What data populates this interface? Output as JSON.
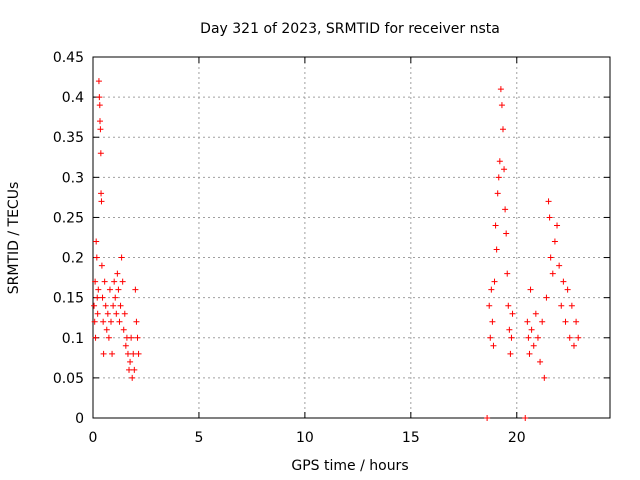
{
  "chart_data": {
    "type": "scatter",
    "title": "Day 321 of 2023, SRMTID for receiver nsta",
    "xlabel": "GPS time / hours",
    "ylabel": "SRMTID / TECUs",
    "xlim": [
      0,
      24.4
    ],
    "ylim": [
      0,
      0.45
    ],
    "x_ticks": [
      "0",
      "5",
      "10",
      "15",
      "20"
    ],
    "x_tick_values": [
      0,
      5,
      10,
      15,
      20
    ],
    "y_ticks": [
      "0",
      "0.05",
      "0.1",
      "0.15",
      "0.2",
      "0.25",
      "0.3",
      "0.35",
      "0.4",
      "0.45"
    ],
    "y_tick_values": [
      0,
      0.05,
      0.1,
      0.15,
      0.2,
      0.25,
      0.3,
      0.35,
      0.4,
      0.45
    ],
    "grid": true,
    "marker": "+",
    "color": "#ff0000",
    "series": [
      {
        "values_xy": [
          [
            0.05,
            0.14
          ],
          [
            0.08,
            0.12
          ],
          [
            0.1,
            0.17
          ],
          [
            0.12,
            0.1
          ],
          [
            0.15,
            0.22
          ],
          [
            0.18,
            0.2
          ],
          [
            0.2,
            0.15
          ],
          [
            0.22,
            0.13
          ],
          [
            0.25,
            0.16
          ],
          [
            0.28,
            0.42
          ],
          [
            0.3,
            0.4
          ],
          [
            0.32,
            0.39
          ],
          [
            0.33,
            0.37
          ],
          [
            0.35,
            0.36
          ],
          [
            0.37,
            0.33
          ],
          [
            0.38,
            0.28
          ],
          [
            0.4,
            0.27
          ],
          [
            0.42,
            0.19
          ],
          [
            0.45,
            0.15
          ],
          [
            0.48,
            0.12
          ],
          [
            0.5,
            0.08
          ],
          [
            0.55,
            0.17
          ],
          [
            0.6,
            0.14
          ],
          [
            0.65,
            0.11
          ],
          [
            0.7,
            0.13
          ],
          [
            0.75,
            0.1
          ],
          [
            0.8,
            0.16
          ],
          [
            0.85,
            0.12
          ],
          [
            0.9,
            0.08
          ],
          [
            0.95,
            0.14
          ],
          [
            1.0,
            0.17
          ],
          [
            1.05,
            0.15
          ],
          [
            1.1,
            0.13
          ],
          [
            1.15,
            0.18
          ],
          [
            1.2,
            0.16
          ],
          [
            1.25,
            0.12
          ],
          [
            1.3,
            0.14
          ],
          [
            1.35,
            0.2
          ],
          [
            1.4,
            0.17
          ],
          [
            1.45,
            0.11
          ],
          [
            1.5,
            0.13
          ],
          [
            1.55,
            0.09
          ],
          [
            1.6,
            0.1
          ],
          [
            1.65,
            0.08
          ],
          [
            1.7,
            0.06
          ],
          [
            1.75,
            0.07
          ],
          [
            1.8,
            0.1
          ],
          [
            1.85,
            0.05
          ],
          [
            1.9,
            0.08
          ],
          [
            1.95,
            0.06
          ],
          [
            2.0,
            0.16
          ],
          [
            2.05,
            0.12
          ],
          [
            2.1,
            0.1
          ],
          [
            2.15,
            0.08
          ],
          [
            18.6,
            0.0
          ],
          [
            18.7,
            0.14
          ],
          [
            18.75,
            0.1
          ],
          [
            18.8,
            0.16
          ],
          [
            18.85,
            0.12
          ],
          [
            18.9,
            0.09
          ],
          [
            18.95,
            0.17
          ],
          [
            19.0,
            0.24
          ],
          [
            19.05,
            0.21
          ],
          [
            19.1,
            0.28
          ],
          [
            19.15,
            0.3
          ],
          [
            19.2,
            0.32
          ],
          [
            19.25,
            0.41
          ],
          [
            19.3,
            0.39
          ],
          [
            19.35,
            0.36
          ],
          [
            19.4,
            0.31
          ],
          [
            19.45,
            0.26
          ],
          [
            19.5,
            0.23
          ],
          [
            19.55,
            0.18
          ],
          [
            19.6,
            0.14
          ],
          [
            19.65,
            0.11
          ],
          [
            19.7,
            0.08
          ],
          [
            19.75,
            0.1
          ],
          [
            19.8,
            0.13
          ],
          [
            20.4,
            0.0
          ],
          [
            20.5,
            0.12
          ],
          [
            20.55,
            0.1
          ],
          [
            20.6,
            0.08
          ],
          [
            20.65,
            0.16
          ],
          [
            20.7,
            0.11
          ],
          [
            20.8,
            0.09
          ],
          [
            20.9,
            0.13
          ],
          [
            21.0,
            0.1
          ],
          [
            21.1,
            0.07
          ],
          [
            21.2,
            0.12
          ],
          [
            21.3,
            0.05
          ],
          [
            21.4,
            0.15
          ],
          [
            21.5,
            0.27
          ],
          [
            21.55,
            0.25
          ],
          [
            21.6,
            0.2
          ],
          [
            21.7,
            0.18
          ],
          [
            21.8,
            0.22
          ],
          [
            21.9,
            0.24
          ],
          [
            22.0,
            0.19
          ],
          [
            22.1,
            0.14
          ],
          [
            22.2,
            0.17
          ],
          [
            22.3,
            0.12
          ],
          [
            22.4,
            0.16
          ],
          [
            22.5,
            0.1
          ],
          [
            22.6,
            0.14
          ],
          [
            22.7,
            0.09
          ],
          [
            22.8,
            0.12
          ],
          [
            22.9,
            0.1
          ]
        ]
      }
    ]
  }
}
